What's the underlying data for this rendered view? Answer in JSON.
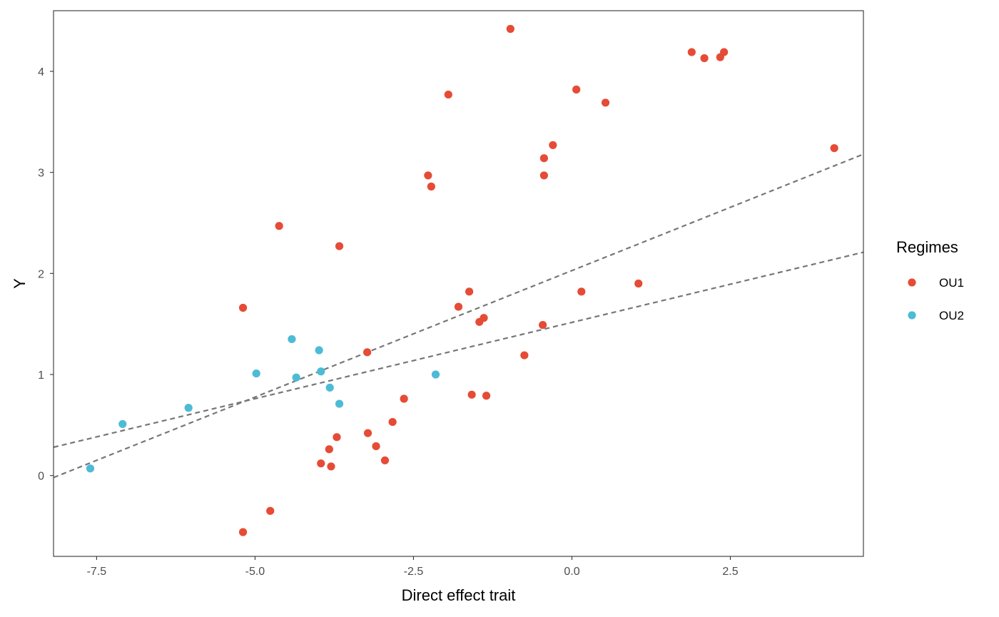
{
  "chart_data": {
    "type": "scatter",
    "title": "",
    "xlabel": "Direct effect trait",
    "ylabel": "Y",
    "xlim": [
      -8.18,
      4.6
    ],
    "ylim": [
      -0.8,
      4.6
    ],
    "x_ticks": [
      -7.5,
      -5.0,
      -2.5,
      0.0,
      2.5
    ],
    "x_tick_labels": [
      "-7.5",
      "-5.0",
      "-2.5",
      "0.0",
      "2.5"
    ],
    "y_ticks": [
      0,
      1,
      2,
      3,
      4
    ],
    "y_tick_labels": [
      "0",
      "1",
      "2",
      "3",
      "4"
    ],
    "grid": false,
    "legend": {
      "title": "Regimes",
      "position": "right"
    },
    "series": [
      {
        "name": "OU1",
        "color": "#E64B35",
        "points": [
          [
            -0.97,
            4.42
          ],
          [
            1.89,
            4.19
          ],
          [
            2.09,
            4.13
          ],
          [
            2.34,
            4.14
          ],
          [
            2.4,
            4.19
          ],
          [
            -1.95,
            3.77
          ],
          [
            0.07,
            3.82
          ],
          [
            0.53,
            3.69
          ],
          [
            4.14,
            3.24
          ],
          [
            -0.3,
            3.27
          ],
          [
            -0.44,
            3.14
          ],
          [
            -0.44,
            2.97
          ],
          [
            -2.27,
            2.97
          ],
          [
            -2.22,
            2.86
          ],
          [
            -4.62,
            2.47
          ],
          [
            -3.67,
            2.27
          ],
          [
            1.05,
            1.9
          ],
          [
            0.15,
            1.82
          ],
          [
            -1.62,
            1.82
          ],
          [
            -1.79,
            1.67
          ],
          [
            -5.19,
            1.66
          ],
          [
            -1.39,
            1.56
          ],
          [
            -1.46,
            1.52
          ],
          [
            -0.46,
            1.49
          ],
          [
            -3.23,
            1.22
          ],
          [
            -0.75,
            1.19
          ],
          [
            -1.58,
            0.8
          ],
          [
            -1.35,
            0.79
          ],
          [
            -2.65,
            0.76
          ],
          [
            -2.83,
            0.53
          ],
          [
            -3.22,
            0.42
          ],
          [
            -3.71,
            0.38
          ],
          [
            -3.09,
            0.29
          ],
          [
            -3.83,
            0.26
          ],
          [
            -2.95,
            0.15
          ],
          [
            -3.96,
            0.12
          ],
          [
            -3.8,
            0.09
          ],
          [
            -4.76,
            -0.35
          ],
          [
            -5.19,
            -0.56
          ]
        ]
      },
      {
        "name": "OU2",
        "color": "#4DBBD5",
        "points": [
          [
            -4.42,
            1.35
          ],
          [
            -3.99,
            1.24
          ],
          [
            -3.96,
            1.03
          ],
          [
            -4.98,
            1.01
          ],
          [
            -4.35,
            0.97
          ],
          [
            -2.15,
            1.0
          ],
          [
            -3.82,
            0.87
          ],
          [
            -3.67,
            0.71
          ],
          [
            -6.05,
            0.67
          ],
          [
            -7.09,
            0.51
          ],
          [
            -7.6,
            0.07
          ]
        ]
      }
    ],
    "reference_lines": [
      {
        "style": "dashed",
        "color": "#777777",
        "x": [
          -8.18,
          4.6
        ],
        "y": [
          -0.02,
          3.18
        ]
      },
      {
        "style": "dashed",
        "color": "#777777",
        "x": [
          -8.18,
          4.6
        ],
        "y": [
          0.28,
          2.21
        ]
      }
    ]
  }
}
